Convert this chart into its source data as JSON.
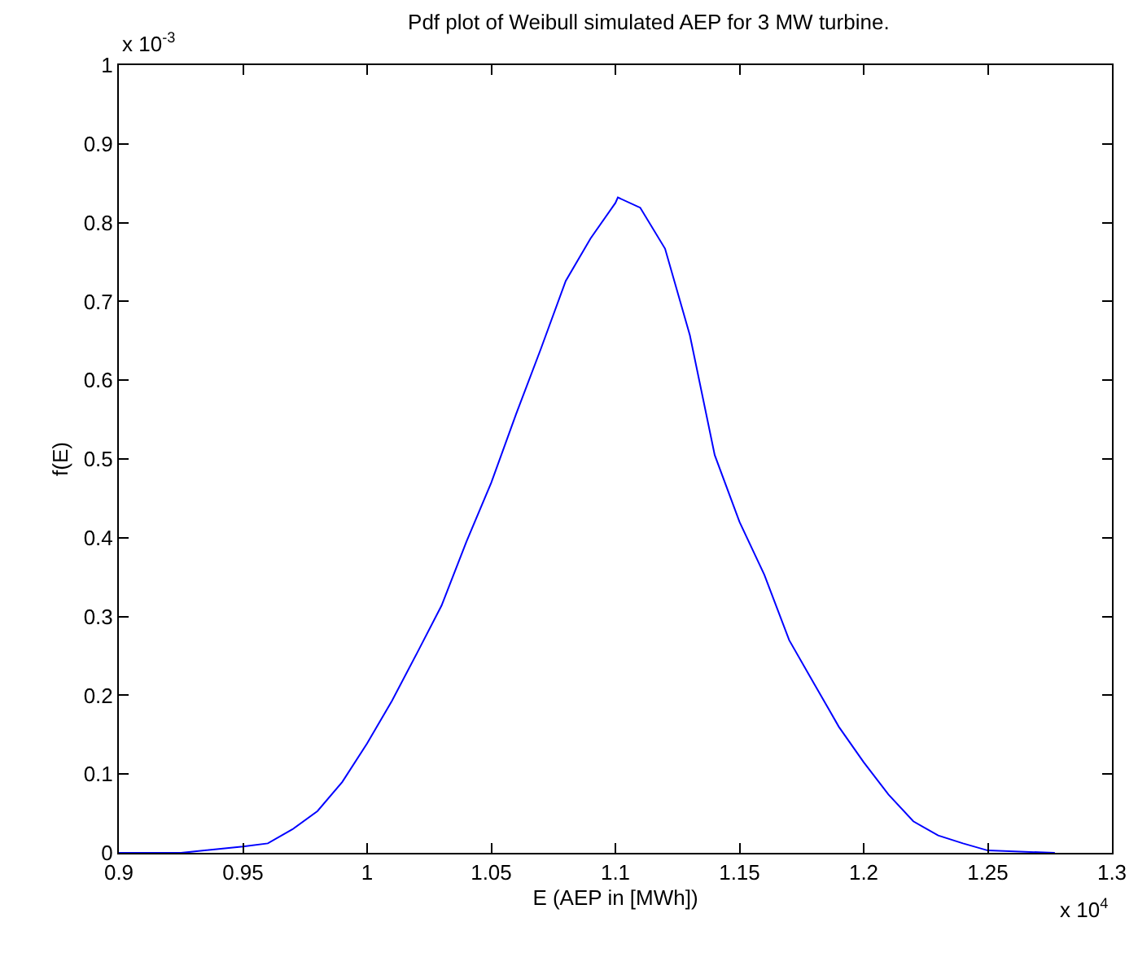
{
  "chart_data": {
    "type": "line",
    "title": "Pdf plot of Weibull simulated AEP for 3 MW turbine.",
    "xlabel": "E (AEP in [MWh])",
    "ylabel": "f(E)",
    "annotations": [
      "x 10$^{-3}$",
      "x 10$^{4}$"
    ],
    "x": [
      0.9,
      0.925,
      0.95,
      0.96,
      0.97,
      0.98,
      0.99,
      1.0,
      1.01,
      1.02,
      1.03,
      1.04,
      1.05,
      1.06,
      1.07,
      1.08,
      1.09,
      1.1,
      1.101,
      1.11,
      1.12,
      1.13,
      1.14,
      1.15,
      1.16,
      1.17,
      1.18,
      1.19,
      1.2,
      1.21,
      1.22,
      1.23,
      1.24,
      1.25,
      1.277
    ],
    "series": [
      {
        "color": "#0000ff",
        "values": [
          0,
          0,
          0.008,
          0.012,
          0.03,
          0.053,
          0.09,
          0.139,
          0.193,
          0.253,
          0.314,
          0.395,
          0.47,
          0.557,
          0.64,
          0.726,
          0.78,
          0.825,
          0.832,
          0.819,
          0.767,
          0.657,
          0.505,
          0.42,
          0.353,
          0.27,
          0.215,
          0.16,
          0.115,
          0.074,
          0.04,
          0.022,
          0.012,
          0.003,
          0
        ]
      }
    ],
    "xlim": [
      0.9,
      1.3
    ],
    "xticks": [
      0.9,
      0.95,
      1,
      1.05,
      1.1,
      1.15,
      1.2,
      1.25,
      1.3
    ],
    "ylim": [
      0,
      1
    ],
    "yticks": [
      0,
      0.1,
      0.2,
      0.3,
      0.4,
      0.5,
      0.6,
      0.7,
      0.8,
      0.9,
      1
    ],
    "grid": false,
    "line_style": "solid",
    "marker": "none"
  }
}
